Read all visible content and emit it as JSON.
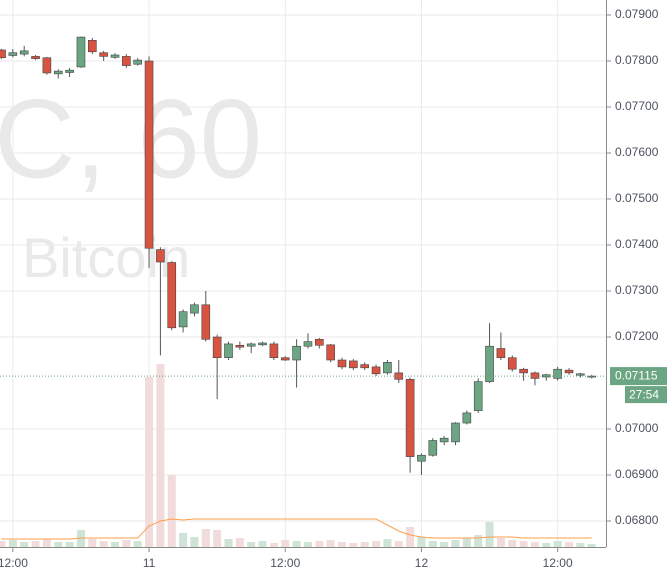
{
  "chart_data": {
    "type": "candlestick",
    "watermark_symbol": "C, 60",
    "watermark_name": "Bitcoin",
    "categories": [
      null,
      "12:00",
      null,
      null,
      null,
      null,
      null,
      null,
      null,
      null,
      null,
      null,
      null,
      "11",
      null,
      null,
      null,
      null,
      null,
      null,
      null,
      null,
      null,
      null,
      null,
      "12:00",
      null,
      null,
      null,
      null,
      null,
      null,
      null,
      null,
      null,
      null,
      null,
      "12",
      null,
      null,
      null,
      null,
      null,
      null,
      null,
      null,
      null,
      null,
      null,
      "12:00",
      null,
      null,
      null
    ],
    "open": [
      0.07824,
      0.07812,
      0.07815,
      0.0781,
      0.07807,
      0.07772,
      0.07775,
      0.07787,
      0.07845,
      0.07818,
      0.07808,
      0.0781,
      0.07793,
      0.078,
      0.0739,
      0.07362,
      0.07222,
      0.07252,
      0.0727,
      0.072,
      0.07155,
      0.07182,
      0.0718,
      0.07183,
      0.07185,
      0.07155,
      0.0715,
      0.0718,
      0.07195,
      0.07183,
      0.0715,
      0.07148,
      0.0714,
      0.07135,
      0.07122,
      0.07122,
      0.07108,
      0.0693,
      0.06943,
      0.06972,
      0.06972,
      0.07013,
      0.0704,
      0.07103,
      0.07175,
      0.07155,
      0.0713,
      0.07122,
      0.07113,
      0.0711,
      0.07128,
      0.07117,
      0.07113
    ],
    "high": [
      0.07826,
      0.07826,
      0.07833,
      0.07813,
      0.07809,
      0.07782,
      0.07785,
      0.07853,
      0.0785,
      0.07822,
      0.07817,
      0.07815,
      0.07806,
      0.0781,
      0.07395,
      0.07365,
      0.0726,
      0.07275,
      0.073,
      0.07205,
      0.0719,
      0.0719,
      0.07188,
      0.0719,
      0.0719,
      0.07158,
      0.07195,
      0.07208,
      0.07198,
      0.07185,
      0.07155,
      0.07152,
      0.07145,
      0.0714,
      0.0715,
      0.0715,
      0.07112,
      0.06947,
      0.0698,
      0.06985,
      0.07015,
      0.0704,
      0.0711,
      0.0723,
      0.0721,
      0.0716,
      0.07133,
      0.07125,
      0.0712,
      0.07135,
      0.07132,
      0.07122,
      0.07118
    ],
    "low": [
      0.07805,
      0.07808,
      0.0781,
      0.07802,
      0.0777,
      0.07762,
      0.07765,
      0.07785,
      0.07815,
      0.078,
      0.07805,
      0.07785,
      0.0779,
      0.0735,
      0.0716,
      0.07215,
      0.0721,
      0.07245,
      0.0719,
      0.07065,
      0.0715,
      0.07172,
      0.07165,
      0.0718,
      0.0715,
      0.07148,
      0.0709,
      0.07175,
      0.07175,
      0.07145,
      0.0713,
      0.07128,
      0.07128,
      0.07115,
      0.07118,
      0.071,
      0.06905,
      0.069,
      0.0694,
      0.06965,
      0.06965,
      0.0701,
      0.07035,
      0.071,
      0.0715,
      0.07125,
      0.07105,
      0.07095,
      0.07105,
      0.07105,
      0.07118,
      0.07112,
      0.0711
    ],
    "close": [
      0.07807,
      0.07818,
      0.07822,
      0.07805,
      0.07774,
      0.07778,
      0.0778,
      0.07852,
      0.0782,
      0.0781,
      0.07813,
      0.0779,
      0.07802,
      0.07393,
      0.07363,
      0.0722,
      0.07255,
      0.0727,
      0.07195,
      0.07155,
      0.07185,
      0.07178,
      0.07185,
      0.07187,
      0.07155,
      0.0715,
      0.0718,
      0.0719,
      0.07182,
      0.0715,
      0.07135,
      0.07133,
      0.07133,
      0.0712,
      0.07145,
      0.07108,
      0.0694,
      0.06943,
      0.06975,
      0.0698,
      0.07013,
      0.07035,
      0.07103,
      0.0718,
      0.07155,
      0.0713,
      0.07122,
      0.0711,
      0.07118,
      0.0713,
      0.07122,
      0.0712,
      0.07115
    ],
    "volume": [
      6,
      7,
      5,
      6,
      8,
      5,
      5,
      17,
      8,
      6,
      5,
      7,
      6,
      170,
      183,
      72,
      14,
      10,
      18,
      17,
      8,
      9,
      5,
      6,
      4,
      7,
      6,
      5,
      6,
      7,
      5,
      4,
      5,
      6,
      8,
      6,
      20,
      10,
      6,
      5,
      7,
      9,
      12,
      25,
      9,
      7,
      6,
      5,
      4,
      6,
      5,
      4,
      3
    ],
    "volume_ma": [
      8,
      8,
      8,
      8,
      8,
      8,
      8,
      9,
      9,
      9,
      9,
      9,
      9,
      21,
      26,
      28,
      27,
      28,
      28,
      28,
      28,
      28,
      28,
      28,
      28,
      28,
      28,
      28,
      28,
      28,
      28,
      28,
      28,
      28,
      22,
      16,
      12,
      10,
      9,
      9,
      9,
      9,
      9,
      10,
      10,
      10,
      9,
      9,
      9,
      9,
      9,
      9,
      9
    ],
    "up_color": "#6ba583",
    "down_color": "#d75442",
    "volume_up_color": "#cfe3d6",
    "volume_down_color": "#f1dcdb",
    "volume_ma_color": "#ff9f4a",
    "ylim": [
      0.067435,
      0.079326
    ],
    "yticks": [
      {
        "value": 0.068,
        "label": "0.06800"
      },
      {
        "value": 0.069,
        "label": "0.06900"
      },
      {
        "value": 0.07,
        "label": "0.07000"
      },
      {
        "value": 0.072,
        "label": "0.07200"
      },
      {
        "value": 0.073,
        "label": "0.07300"
      },
      {
        "value": 0.074,
        "label": "0.07400"
      },
      {
        "value": 0.075,
        "label": "0.07500"
      },
      {
        "value": 0.076,
        "label": "0.07600"
      },
      {
        "value": 0.077,
        "label": "0.07700"
      },
      {
        "value": 0.078,
        "label": "0.07800"
      },
      {
        "value": 0.079,
        "label": "0.07900"
      }
    ],
    "y2lim": [
      0,
      547
    ],
    "last_price": {
      "value": 0.07115,
      "label": "0.07115"
    },
    "countdown": "27:54",
    "grid": true
  }
}
